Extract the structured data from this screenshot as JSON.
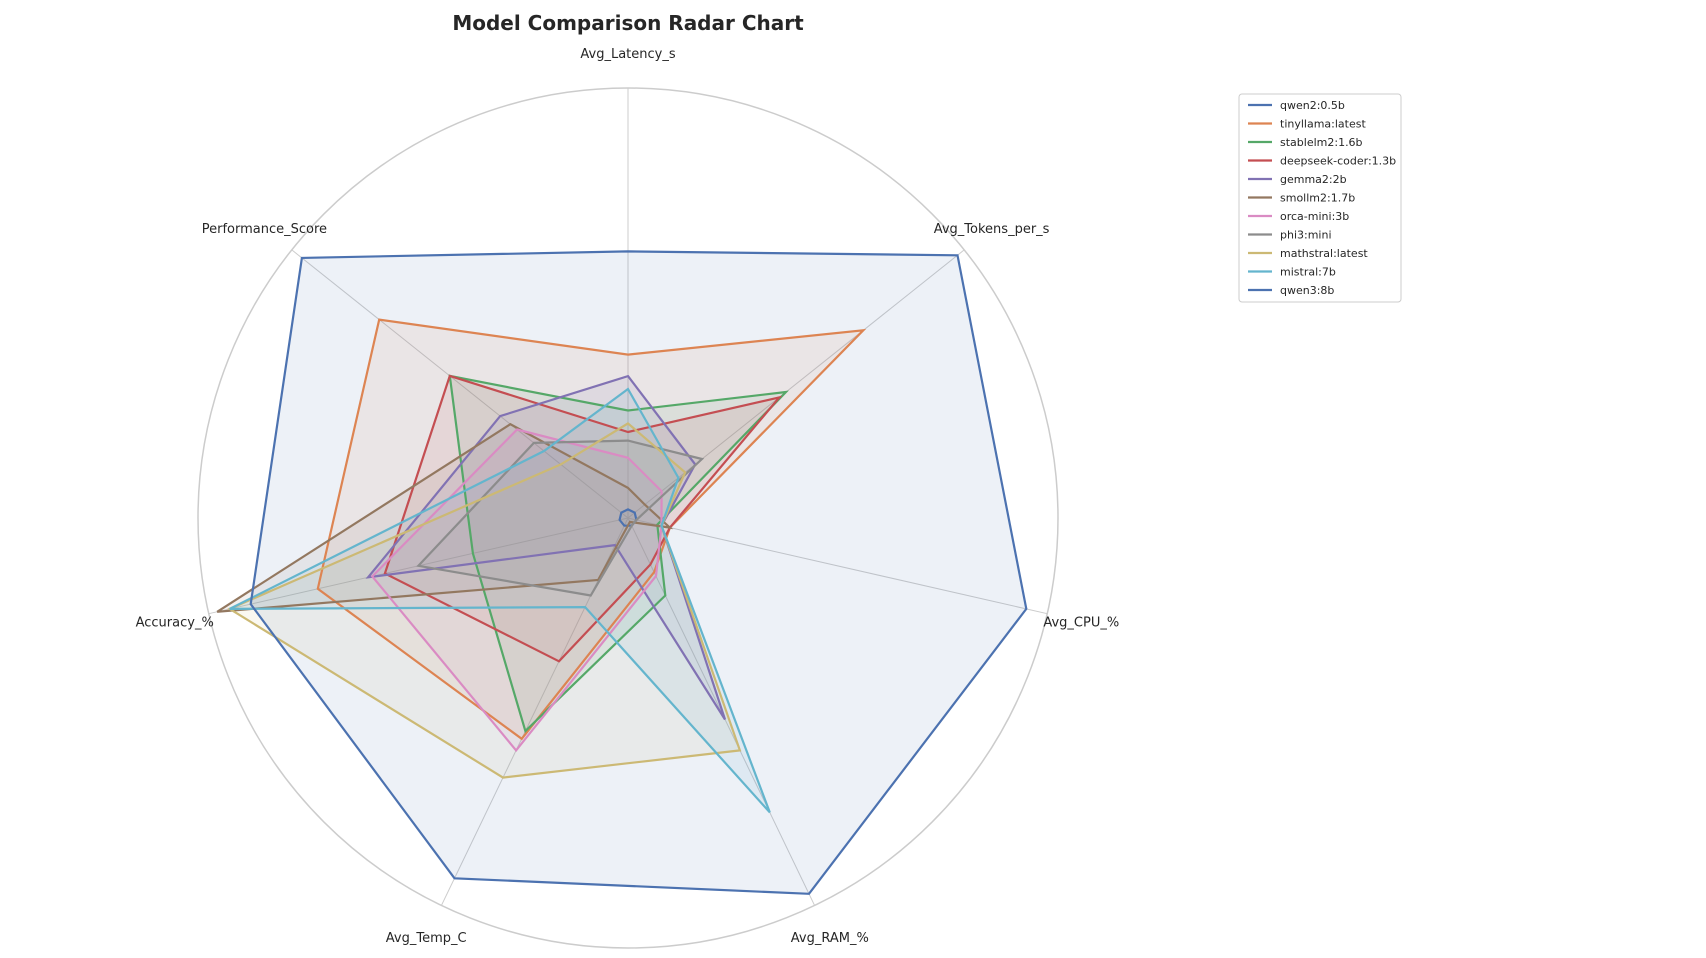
{
  "chart_data": {
    "type": "radar",
    "title": "Model Comparison Radar Chart",
    "axes": [
      "Avg_Latency_s",
      "Avg_Tokens_per_s",
      "Avg_CPU_%",
      "Avg_RAM_%",
      "Avg_Temp_C",
      "Accuracy_%",
      "Performance_Score"
    ],
    "scale": "normalized",
    "rlim": [
      0,
      1
    ],
    "grid": true,
    "legend_position": "upper-right-outside",
    "series": [
      {
        "name": "qwen2:0.5b",
        "color": "#4c72b0",
        "values": [
          0.02,
          0.02,
          0.02,
          0.02,
          0.02,
          0.02,
          0.02
        ]
      },
      {
        "name": "tinyllama:latest",
        "color": "#dd8452",
        "values": [
          0.38,
          0.7,
          0.1,
          0.14,
          0.57,
          0.74,
          0.74
        ]
      },
      {
        "name": "stablelm2:1.6b",
        "color": "#55a868",
        "values": [
          0.25,
          0.47,
          0.07,
          0.2,
          0.55,
          0.37,
          0.53
        ]
      },
      {
        "name": "deepseek-coder:1.3b",
        "color": "#c44e52",
        "values": [
          0.2,
          0.45,
          0.1,
          0.12,
          0.37,
          0.58,
          0.53
        ]
      },
      {
        "name": "gemma2:2b",
        "color": "#8172b3",
        "values": [
          0.33,
          0.2,
          0.08,
          0.52,
          0.07,
          0.62,
          0.38
        ]
      },
      {
        "name": "smollm2:1.7b",
        "color": "#937860",
        "values": [
          0.07,
          0.05,
          0.1,
          0.01,
          0.16,
          0.98,
          0.35
        ]
      },
      {
        "name": "orca-mini:3b",
        "color": "#da8bc3",
        "values": [
          0.14,
          0.1,
          0.08,
          0.15,
          0.6,
          0.61,
          0.33
        ]
      },
      {
        "name": "phi3:mini",
        "color": "#8c8c8c",
        "values": [
          0.18,
          0.22,
          0.02,
          0.02,
          0.2,
          0.5,
          0.28
        ]
      },
      {
        "name": "mathstral:latest",
        "color": "#ccb974",
        "values": [
          0.22,
          0.17,
          0.08,
          0.6,
          0.67,
          0.95,
          0.2
        ]
      },
      {
        "name": "mistral:7b",
        "color": "#64b5cd",
        "values": [
          0.3,
          0.15,
          0.08,
          0.76,
          0.23,
          0.95,
          0.25
        ]
      },
      {
        "name": "qwen3:8b",
        "color": "#4c72b0",
        "values": [
          0.62,
          0.98,
          0.95,
          0.97,
          0.93,
          0.9,
          0.97
        ]
      }
    ]
  }
}
